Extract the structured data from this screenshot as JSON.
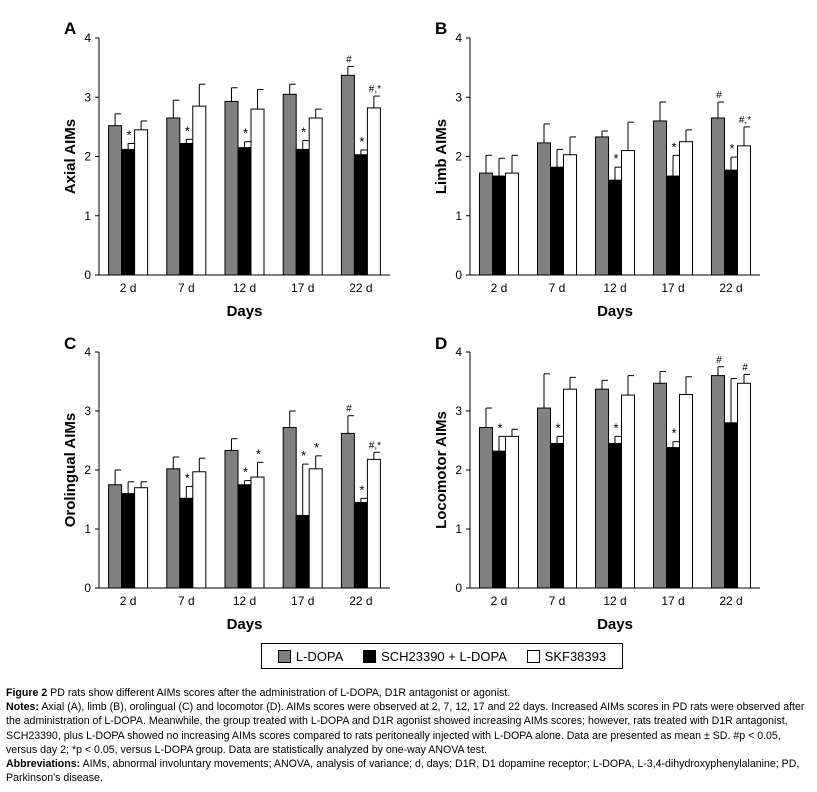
{
  "chart_data": [
    {
      "type": "bar",
      "panel_label": "A",
      "ylabel": "Axial AIMs",
      "xlabel": "Days",
      "ylim": [
        0,
        4
      ],
      "yticks": [
        "0",
        "1",
        "2",
        "3",
        "4"
      ],
      "categories": [
        "2 d",
        "7 d",
        "12 d",
        "17 d",
        "22 d"
      ],
      "series": [
        {
          "name": "L-DOPA",
          "values": [
            2.52,
            2.65,
            2.93,
            3.05,
            3.37
          ],
          "errors": [
            0.2,
            0.3,
            0.23,
            0.17,
            0.15
          ],
          "annotations": [
            "",
            "",
            "",
            "",
            "#"
          ]
        },
        {
          "name": "SCH23390 + L-DOPA",
          "values": [
            2.12,
            2.22,
            2.15,
            2.12,
            2.03
          ],
          "errors": [
            0.1,
            0.07,
            0.1,
            0.15,
            0.08
          ],
          "annotations": [
            "*",
            "*",
            "*",
            "*",
            "*"
          ]
        },
        {
          "name": "SKF38393",
          "values": [
            2.45,
            2.85,
            2.8,
            2.65,
            2.82
          ],
          "errors": [
            0.15,
            0.37,
            0.33,
            0.15,
            0.2
          ],
          "annotations": [
            "",
            "",
            "",
            "",
            "#,*"
          ]
        }
      ]
    },
    {
      "type": "bar",
      "panel_label": "B",
      "ylabel": "Limb AIMs",
      "xlabel": "Days",
      "ylim": [
        0,
        4
      ],
      "yticks": [
        "0",
        "1",
        "2",
        "3",
        "4"
      ],
      "categories": [
        "2 d",
        "7 d",
        "12 d",
        "17 d",
        "22 d"
      ],
      "series": [
        {
          "name": "L-DOPA",
          "values": [
            1.72,
            2.23,
            2.33,
            2.6,
            2.65
          ],
          "errors": [
            0.3,
            0.32,
            0.1,
            0.32,
            0.27
          ],
          "annotations": [
            "",
            "",
            "",
            "",
            "#"
          ]
        },
        {
          "name": "SCH23390 + L-DOPA",
          "values": [
            1.67,
            1.82,
            1.6,
            1.67,
            1.77
          ],
          "errors": [
            0.3,
            0.3,
            0.22,
            0.35,
            0.22
          ],
          "annotations": [
            "",
            "",
            "*",
            "*",
            "*"
          ]
        },
        {
          "name": "SKF38393",
          "values": [
            1.72,
            2.03,
            2.1,
            2.25,
            2.18
          ],
          "errors": [
            0.3,
            0.3,
            0.48,
            0.2,
            0.32
          ],
          "annotations": [
            "",
            "",
            "",
            "",
            "#,*"
          ]
        }
      ]
    },
    {
      "type": "bar",
      "panel_label": "C",
      "ylabel": "Orolingual AIMs",
      "xlabel": "Days",
      "ylim": [
        0,
        4
      ],
      "yticks": [
        "0",
        "1",
        "2",
        "3",
        "4"
      ],
      "categories": [
        "2 d",
        "7 d",
        "12 d",
        "17 d",
        "22 d"
      ],
      "series": [
        {
          "name": "L-DOPA",
          "values": [
            1.75,
            2.02,
            2.33,
            2.72,
            2.62
          ],
          "errors": [
            0.25,
            0.2,
            0.2,
            0.28,
            0.3
          ],
          "annotations": [
            "",
            "",
            "",
            "",
            "#"
          ]
        },
        {
          "name": "SCH23390 + L-DOPA",
          "values": [
            1.6,
            1.52,
            1.75,
            1.23,
            1.45
          ],
          "errors": [
            0.2,
            0.2,
            0.07,
            0.87,
            0.07
          ],
          "annotations": [
            "",
            "*",
            "*",
            "*",
            "*"
          ]
        },
        {
          "name": "SKF38393",
          "values": [
            1.7,
            1.97,
            1.88,
            2.02,
            2.18
          ],
          "errors": [
            0.1,
            0.23,
            0.25,
            0.22,
            0.12
          ],
          "annotations": [
            "",
            "",
            "*",
            "*",
            "#,*"
          ]
        }
      ]
    },
    {
      "type": "bar",
      "panel_label": "D",
      "ylabel": "Locomotor AIMs",
      "xlabel": "Days",
      "ylim": [
        0,
        4
      ],
      "yticks": [
        "0",
        "1",
        "2",
        "3",
        "4"
      ],
      "categories": [
        "2 d",
        "7 d",
        "12 d",
        "17 d",
        "22 d"
      ],
      "series": [
        {
          "name": "L-DOPA",
          "values": [
            2.72,
            3.05,
            3.37,
            3.47,
            3.6
          ],
          "errors": [
            0.33,
            0.58,
            0.15,
            0.2,
            0.15
          ],
          "annotations": [
            "",
            "",
            "",
            "",
            "#"
          ]
        },
        {
          "name": "SCH23390 + L-DOPA",
          "values": [
            2.32,
            2.45,
            2.45,
            2.38,
            2.8
          ],
          "errors": [
            0.25,
            0.12,
            0.12,
            0.1,
            0.75
          ],
          "annotations": [
            "*",
            "*",
            "*",
            "*",
            ""
          ]
        },
        {
          "name": "SKF38393",
          "values": [
            2.57,
            3.37,
            3.27,
            3.28,
            3.47
          ],
          "errors": [
            0.12,
            0.2,
            0.33,
            0.3,
            0.15
          ],
          "annotations": [
            "",
            "",
            "",
            "",
            "#"
          ]
        }
      ]
    }
  ],
  "legend": {
    "items": [
      {
        "label": "L-DOPA",
        "color": "#808080"
      },
      {
        "label": "SCH23390 + L-DOPA",
        "color": "#000000"
      },
      {
        "label": "SKF38393",
        "color": "#ffffff"
      }
    ]
  },
  "caption": {
    "figure_label": "Figure 2",
    "figure_title": "PD rats show different AIMs scores after the administration of L-DOPA, D1R antagonist or agonist.",
    "notes_label": "Notes:",
    "notes_text": "Axial (A), limb (B), orolingual (C) and locomotor (D). AIMs scores were observed at 2, 7, 12, 17 and 22 days. Increased AIMs scores in PD rats were observed after the administration of L-DOPA. Meanwhile, the group treated with L-DOPA and D1R agonist showed increasing AIMs scores; however, rats treated with D1R antagonist, SCH23390, plus L-DOPA showed no increasing AIMs scores compared to rats peritoneally injected with L-DOPA alone. Data are presented as mean ± SD. #p < 0.05, versus day 2; *p < 0.05, versus L-DOPA group. Data are statistically analyzed by one-way ANOVA test.",
    "abbrev_label": "Abbreviations:",
    "abbrev_text": "AIMs, abnormal involuntary movements; ANOVA, analysis of variance; d, days; D1R, D1 dopamine receptor; L-DOPA, L-3,4-dihydroxyphenylalanine; PD, Parkinson's disease."
  }
}
